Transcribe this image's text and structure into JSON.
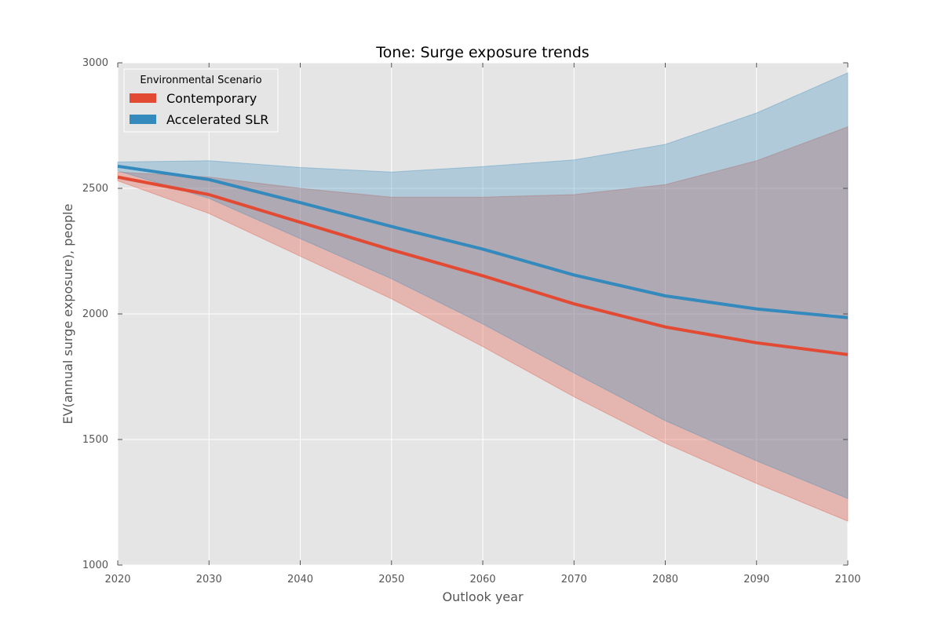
{
  "chart_data": {
    "type": "line",
    "title": "Tone: Surge exposure trends",
    "xlabel": "Outlook year",
    "ylabel": "EV(annual surge exposure), people",
    "xlim": [
      2020,
      2100
    ],
    "ylim": [
      1000,
      3000
    ],
    "x_ticks": [
      2020,
      2030,
      2040,
      2050,
      2060,
      2070,
      2080,
      2090,
      2100
    ],
    "y_ticks": [
      1000,
      1500,
      2000,
      2500,
      3000
    ],
    "grid": true,
    "background": "#e5e5e5",
    "legend": {
      "title": "Environmental Scenario",
      "placement": "top-left"
    },
    "x": [
      2020,
      2030,
      2040,
      2050,
      2060,
      2070,
      2080,
      2090,
      2100
    ],
    "series": [
      {
        "name": "Contemporary",
        "color": "#e24a33",
        "values": [
          2545,
          2475,
          2365,
          2255,
          2152,
          2040,
          1948,
          1885,
          1838
        ],
        "band_upper": [
          2565,
          2545,
          2500,
          2465,
          2465,
          2475,
          2515,
          2610,
          2745
        ],
        "band_lower": [
          2530,
          2400,
          2230,
          2060,
          1870,
          1670,
          1485,
          1325,
          1175
        ]
      },
      {
        "name": "Accelerated SLR",
        "color": "#348abd",
        "values": [
          2588,
          2535,
          2443,
          2348,
          2258,
          2155,
          2072,
          2020,
          1985
        ],
        "band_upper": [
          2605,
          2610,
          2583,
          2565,
          2587,
          2613,
          2675,
          2800,
          2960
        ],
        "band_lower": [
          2570,
          2460,
          2300,
          2140,
          1960,
          1765,
          1575,
          1415,
          1265
        ]
      }
    ]
  }
}
